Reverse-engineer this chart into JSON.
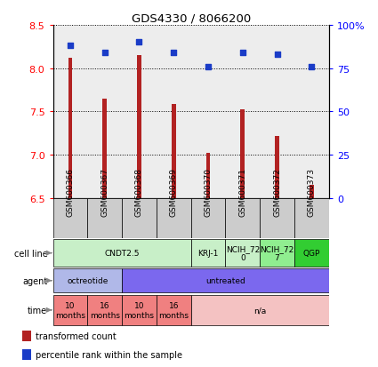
{
  "title": "GDS4330 / 8066200",
  "samples": [
    "GSM600366",
    "GSM600367",
    "GSM600368",
    "GSM600369",
    "GSM600370",
    "GSM600371",
    "GSM600372",
    "GSM600373"
  ],
  "bar_values": [
    8.12,
    7.65,
    8.15,
    7.58,
    7.02,
    7.52,
    7.22,
    6.65
  ],
  "dot_values": [
    88,
    84,
    90,
    84,
    76,
    84,
    83,
    76
  ],
  "ylim_left": [
    6.5,
    8.5
  ],
  "ylim_right": [
    0,
    100
  ],
  "yticks_left": [
    6.5,
    7.0,
    7.5,
    8.0,
    8.5
  ],
  "yticks_right": [
    0,
    25,
    50,
    75,
    100
  ],
  "bar_color": "#B22222",
  "dot_color": "#1a3cc7",
  "bar_width": 0.12,
  "cell_line_groups": [
    {
      "text": "CNDT2.5",
      "start": 0,
      "end": 4,
      "color": "#c8efc8"
    },
    {
      "text": "KRJ-1",
      "start": 4,
      "end": 5,
      "color": "#c8efc8"
    },
    {
      "text": "NCIH_72\n0",
      "start": 5,
      "end": 6,
      "color": "#c8efc8"
    },
    {
      "text": "NCIH_72\n7",
      "start": 6,
      "end": 7,
      "color": "#90ee90"
    },
    {
      "text": "QGP",
      "start": 7,
      "end": 8,
      "color": "#32cd32"
    }
  ],
  "agent_groups": [
    {
      "text": "octreotide",
      "start": 0,
      "end": 2,
      "color": "#b0b8e8"
    },
    {
      "text": "untreated",
      "start": 2,
      "end": 8,
      "color": "#7b68ee"
    }
  ],
  "time_groups": [
    {
      "text": "10\nmonths",
      "start": 0,
      "end": 1,
      "color": "#f08080"
    },
    {
      "text": "16\nmonths",
      "start": 1,
      "end": 2,
      "color": "#f08080"
    },
    {
      "text": "10\nmonths",
      "start": 2,
      "end": 3,
      "color": "#f08080"
    },
    {
      "text": "16\nmonths",
      "start": 3,
      "end": 4,
      "color": "#f08080"
    },
    {
      "text": "n/a",
      "start": 4,
      "end": 8,
      "color": "#f4c2c2"
    }
  ],
  "legend": [
    {
      "color": "#B22222",
      "label": "transformed count"
    },
    {
      "color": "#1a3cc7",
      "label": "percentile rank within the sample"
    }
  ],
  "row_labels": [
    "cell line",
    "agent",
    "time"
  ],
  "sample_box_color": "#cccccc",
  "chart_bg": "#f5f5f5"
}
